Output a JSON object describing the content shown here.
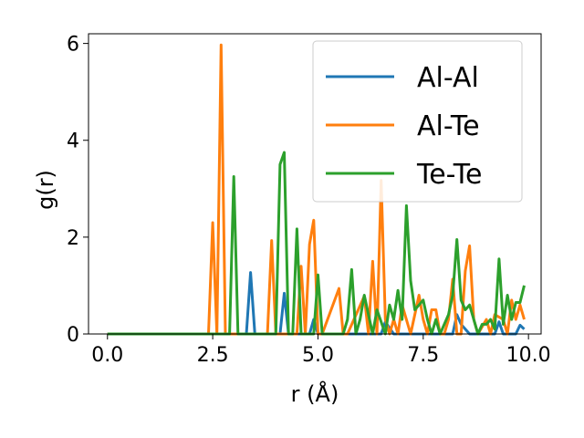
{
  "chart_data": {
    "type": "line",
    "xlabel": "r (Å)",
    "ylabel": "g(r)",
    "xlim": [
      -0.45,
      10.3
    ],
    "ylim": [
      0,
      6.2
    ],
    "xticks": [
      0.0,
      2.5,
      5.0,
      7.5,
      10.0
    ],
    "xtick_labels": [
      "0.0",
      "2.5",
      "5.0",
      "7.5",
      "10.0"
    ],
    "yticks": [
      0,
      2,
      4,
      6
    ],
    "ytick_labels": [
      "0",
      "2",
      "4",
      "6"
    ],
    "grid": false,
    "legend_position": "upper right",
    "series": [
      {
        "name": "Al-Al",
        "color": "#1f77b4",
        "x": [
          0.0,
          2.5,
          3.1,
          3.2,
          3.3,
          3.4,
          3.5,
          3.6,
          3.8,
          4.1,
          4.2,
          4.3,
          4.4,
          4.6,
          4.8,
          4.9,
          5.0,
          5.2,
          6.0,
          6.5,
          6.6,
          6.8,
          7.0,
          7.5,
          8.2,
          8.3,
          8.4,
          8.6,
          9.2,
          9.3,
          9.4,
          9.7,
          9.8,
          9.9
        ],
        "y": [
          0,
          0,
          0,
          0,
          0,
          1.27,
          0,
          0,
          0,
          0,
          0.84,
          0,
          0,
          0,
          0,
          0.3,
          0,
          0,
          0,
          0,
          0.25,
          0,
          0,
          0,
          0,
          0.4,
          0.2,
          0,
          0,
          0.25,
          0,
          0,
          0.18,
          0.1
        ]
      },
      {
        "name": "Al-Te",
        "color": "#ff7f0e",
        "x": [
          0.0,
          2.4,
          2.5,
          2.6,
          2.7,
          2.8,
          3.8,
          3.9,
          4.0,
          4.1,
          4.5,
          4.6,
          4.7,
          4.8,
          4.9,
          5.0,
          5.1,
          5.5,
          5.6,
          5.7,
          6.1,
          6.2,
          6.3,
          6.4,
          6.5,
          6.6,
          6.7,
          6.8,
          6.9,
          7.0,
          7.2,
          7.4,
          7.5,
          7.6,
          7.7,
          7.8,
          7.9,
          8.0,
          8.1,
          8.2,
          8.3,
          8.4,
          8.5,
          8.6,
          8.7,
          8.8,
          9.0,
          9.1,
          9.2,
          9.4,
          9.5,
          9.6,
          9.7,
          9.8,
          9.9
        ],
        "y": [
          0,
          0,
          2.3,
          0,
          5.97,
          0,
          0,
          1.93,
          0,
          0,
          0,
          1.4,
          0,
          1.85,
          2.35,
          0,
          0,
          0.94,
          0,
          0,
          0.78,
          0,
          1.5,
          0,
          3.17,
          0.3,
          0,
          0.3,
          0,
          0.6,
          0,
          0.8,
          0.3,
          0,
          0.5,
          0.5,
          0,
          0,
          0.3,
          1.13,
          0,
          0,
          1.3,
          1.82,
          0.3,
          0,
          0.3,
          0,
          0.4,
          0.3,
          0,
          0.7,
          0.3,
          0.6,
          0.3
        ]
      },
      {
        "name": "Te-Te",
        "color": "#2ca02c",
        "x": [
          0.0,
          2.8,
          2.9,
          3.0,
          3.1,
          4.0,
          4.1,
          4.2,
          4.3,
          4.4,
          4.5,
          4.6,
          4.9,
          5.0,
          5.1,
          5.6,
          5.7,
          5.8,
          5.9,
          6.0,
          6.1,
          6.3,
          6.4,
          6.6,
          6.7,
          6.8,
          6.9,
          7.0,
          7.1,
          7.2,
          7.3,
          7.4,
          7.5,
          7.6,
          7.7,
          7.8,
          7.9,
          8.0,
          8.1,
          8.2,
          8.3,
          8.4,
          8.5,
          8.6,
          8.8,
          8.9,
          9.0,
          9.1,
          9.2,
          9.3,
          9.4,
          9.5,
          9.6,
          9.7,
          9.8,
          9.9
        ],
        "y": [
          0,
          0,
          0,
          3.25,
          0,
          0,
          3.5,
          3.75,
          0,
          0,
          2.17,
          0,
          0,
          1.22,
          0,
          0,
          0.3,
          1.33,
          0,
          0.3,
          0.8,
          0,
          0.5,
          0,
          0.6,
          0.3,
          0.9,
          0.3,
          2.65,
          1.1,
          0.5,
          0.6,
          0.7,
          0.3,
          0,
          0.3,
          0,
          0.2,
          0.4,
          0.8,
          1.95,
          0.7,
          0.5,
          0.6,
          0,
          0.2,
          0.2,
          0.3,
          0.1,
          1.55,
          0.2,
          0.8,
          0.3,
          0.65,
          0.65,
          1.0
        ]
      }
    ]
  }
}
